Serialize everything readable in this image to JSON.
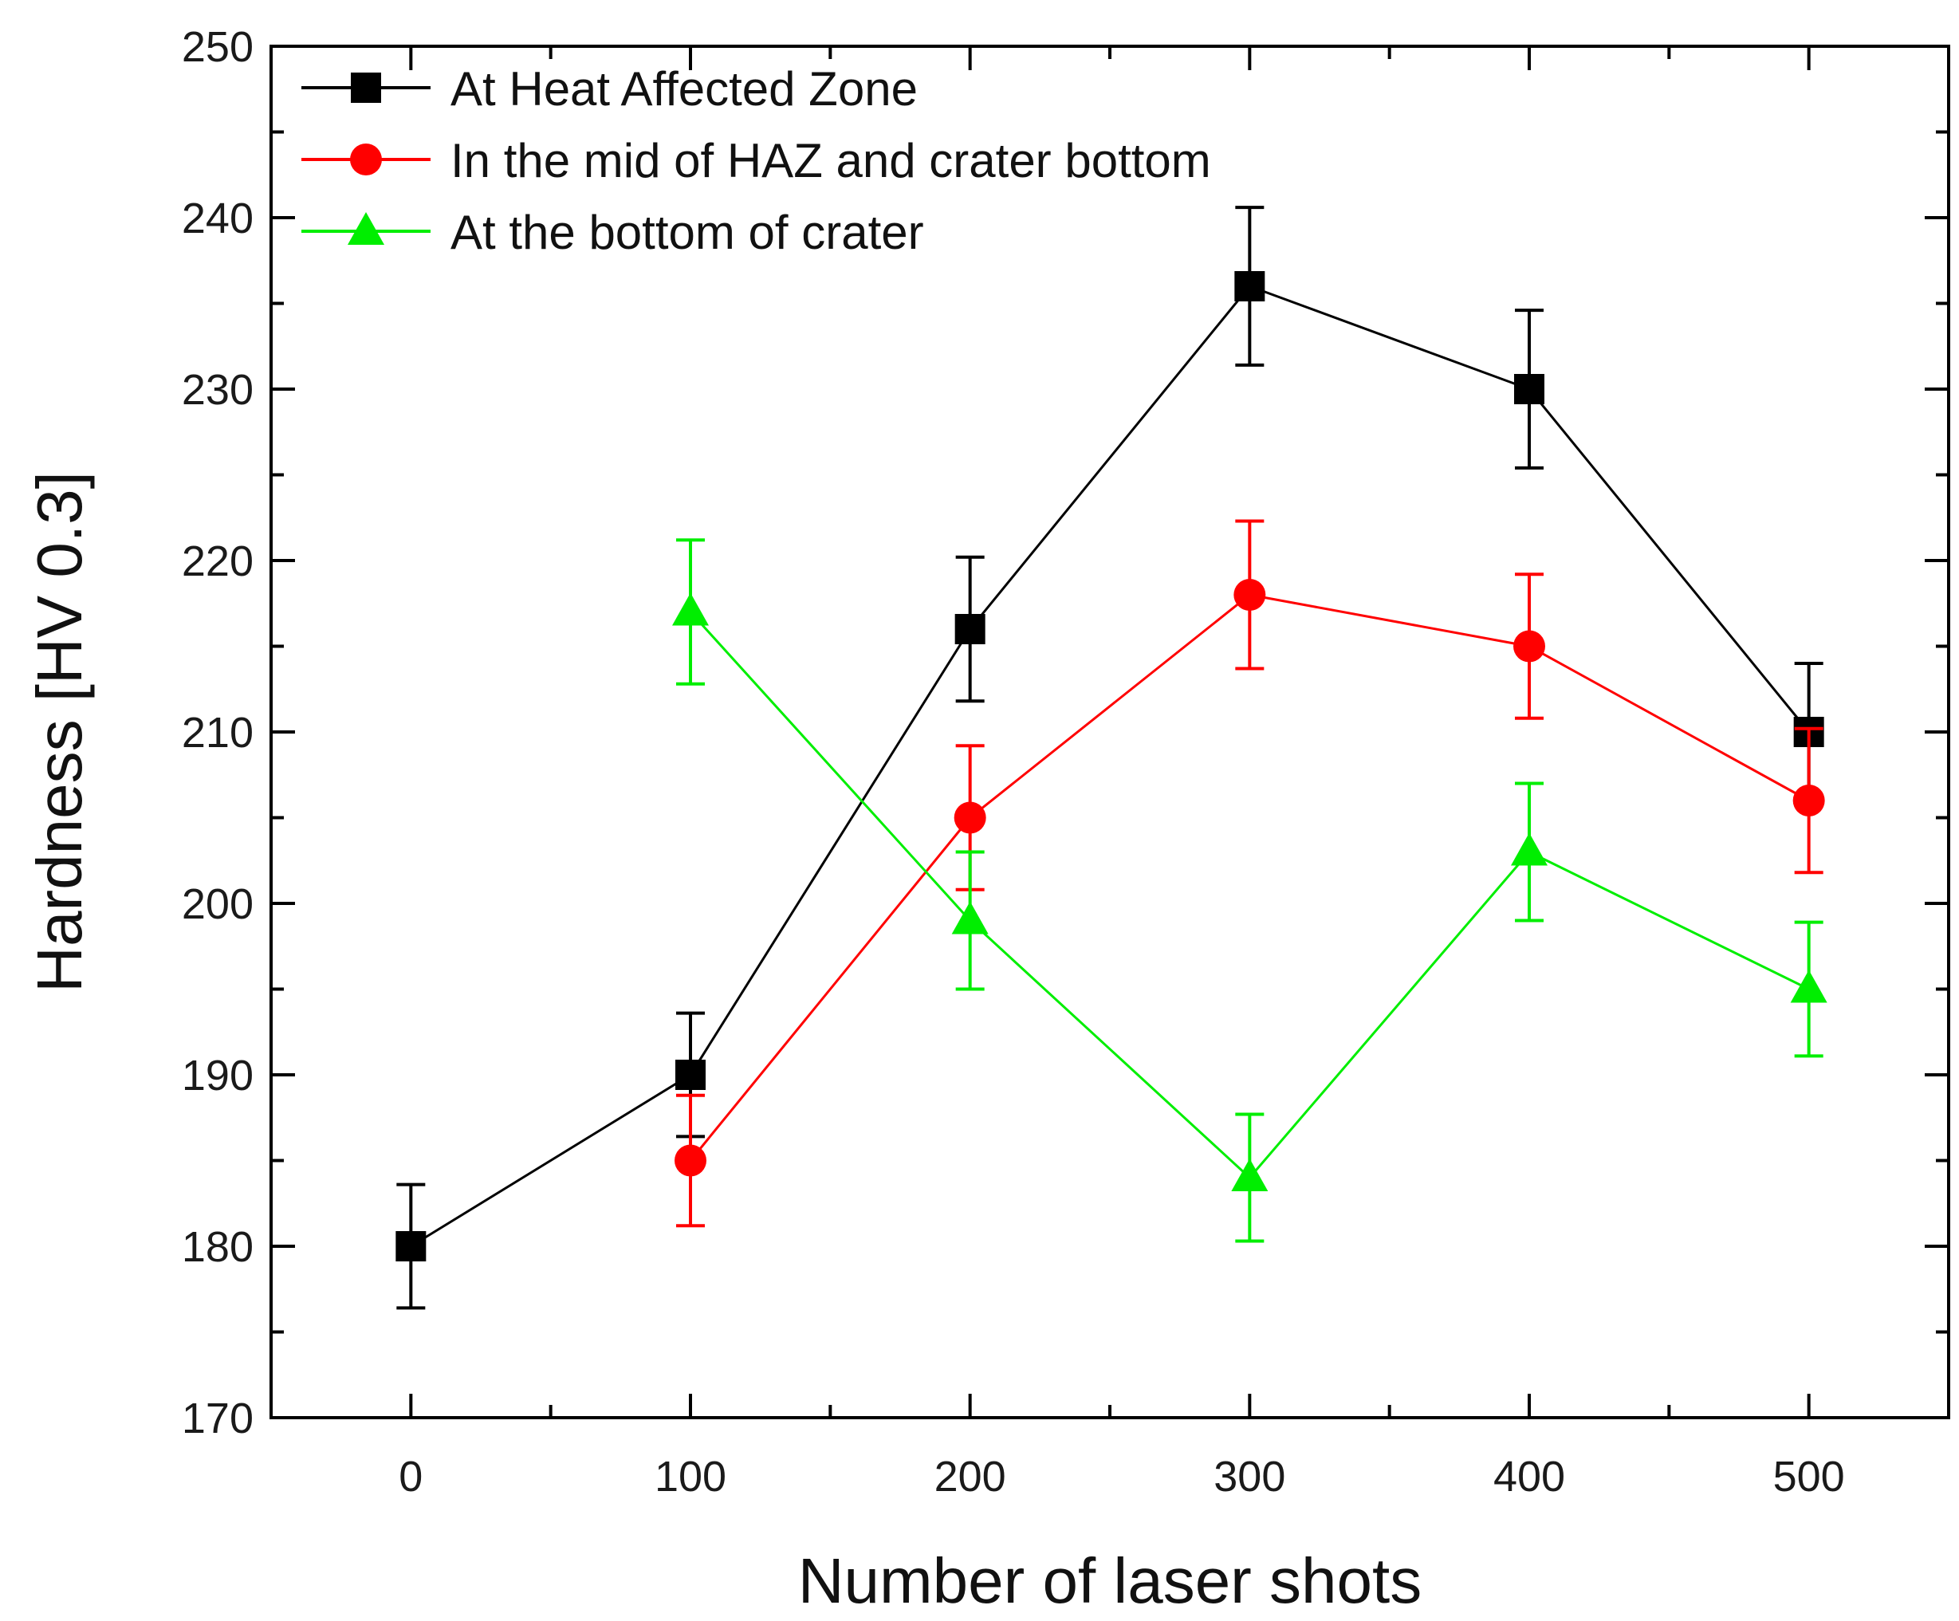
{
  "chart_data": {
    "type": "line",
    "title": "",
    "xlabel": "Number of laser shots",
    "ylabel": "Hardness [HV 0.3]",
    "xlim": [
      -50,
      550
    ],
    "ylim": [
      170,
      250
    ],
    "xticks": [
      0,
      100,
      200,
      300,
      400,
      500
    ],
    "yticks": [
      170,
      180,
      190,
      200,
      210,
      220,
      230,
      240,
      250
    ],
    "legend_position": "top-left",
    "grid": false,
    "series": [
      {
        "name": "At Heat Affected Zone",
        "color": "#000000",
        "marker": "square",
        "x": [
          0,
          100,
          200,
          300,
          400,
          500
        ],
        "y": [
          180,
          190,
          216,
          236,
          230,
          210
        ],
        "err": [
          3.6,
          3.6,
          4.2,
          4.6,
          4.6,
          4.0
        ]
      },
      {
        "name": "In the mid of HAZ and crater bottom",
        "color": "#ff0000",
        "marker": "circle",
        "x": [
          100,
          200,
          300,
          400,
          500
        ],
        "y": [
          185,
          205,
          218,
          215,
          206
        ],
        "err": [
          3.8,
          4.2,
          4.3,
          4.2,
          4.2
        ]
      },
      {
        "name": "At the bottom of crater",
        "color": "#00ee00",
        "marker": "triangle",
        "x": [
          100,
          200,
          300,
          400,
          500
        ],
        "y": [
          217,
          199,
          184,
          203,
          195
        ],
        "err": [
          4.2,
          4.0,
          3.7,
          4.0,
          3.9
        ]
      }
    ]
  }
}
